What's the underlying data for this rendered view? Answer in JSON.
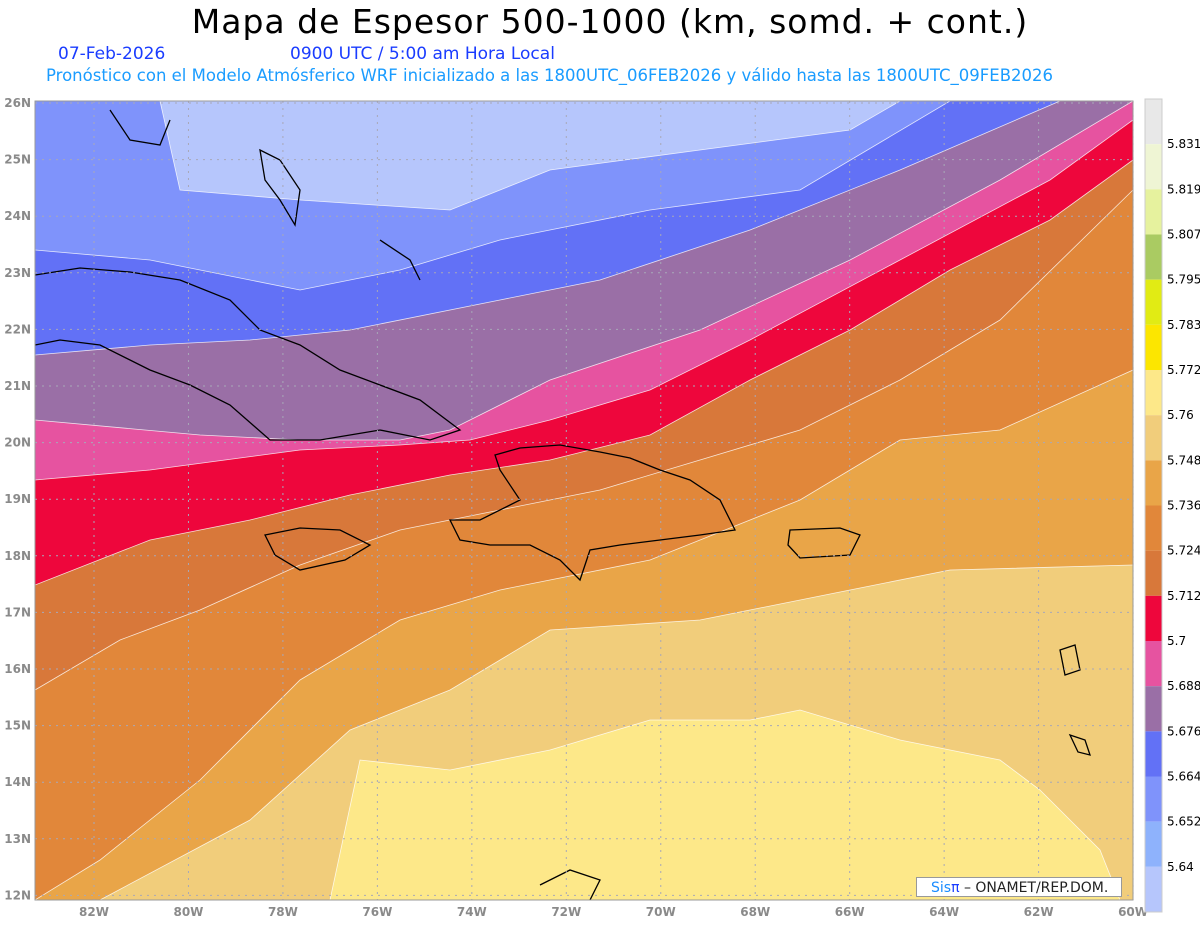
{
  "header": {
    "title": "Mapa de Espesor 500-1000 (km, somd. + cont.)",
    "date": "07-Feb-2026",
    "time": "0900 UTC / 5:00 am Hora Local",
    "description": "Pronóstico con el Modelo Atmósferico WRF inicializado a las 1800UTC_06FEB2026 y válido hasta las  1800UTC_09FEB2026"
  },
  "axes": {
    "lon_labels": [
      "82W",
      "80W",
      "78W",
      "76W",
      "74W",
      "72W",
      "70W",
      "68W",
      "66W",
      "64W",
      "62W",
      "60W"
    ],
    "lat_labels": [
      "26N",
      "25N",
      "24N",
      "23N",
      "22N",
      "21N",
      "20N",
      "19N",
      "18N",
      "17N",
      "16N",
      "15N",
      "14N",
      "13N",
      "12N"
    ]
  },
  "colorbar": {
    "levels": [
      "5.64",
      "5.652",
      "5.664",
      "5.676",
      "5.688",
      "5.7",
      "5.712",
      "5.724",
      "5.736",
      "5.748",
      "5.76",
      "5.772",
      "5.783",
      "5.795",
      "5.807",
      "5.819",
      "5.831"
    ],
    "colors": [
      "#b6c6fc",
      "#8eb2fc",
      "#7f93fb",
      "#6271f6",
      "#9a6fa6",
      "#e653a0",
      "#ee063c",
      "#d8783a",
      "#e1873a",
      "#e9a548",
      "#f1cd7b",
      "#fde889",
      "#fce600",
      "#e1eb14",
      "#aacb62",
      "#e6f29e",
      "#eff5d4",
      "#e8e8e8"
    ]
  },
  "credit": {
    "sis": "Sis",
    "pi": "π",
    "text": " – ONAMET/REP.DOM."
  }
}
